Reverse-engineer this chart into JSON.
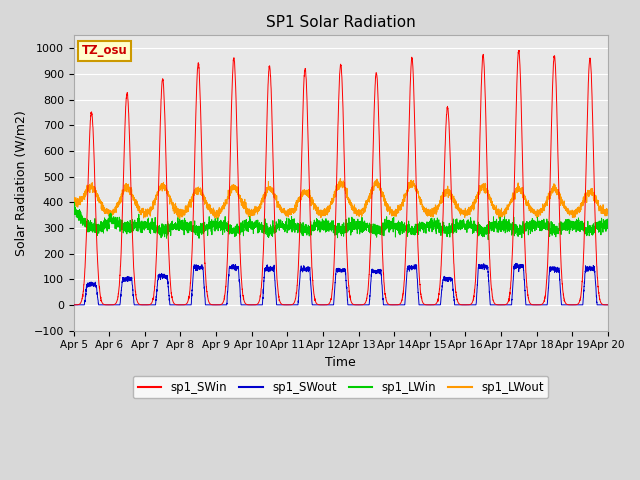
{
  "title": "SP1 Solar Radiation",
  "xlabel": "Time",
  "ylabel": "Solar Radiation (W/m2)",
  "ylim": [
    -100,
    1050
  ],
  "xlim": [
    0,
    15.0
  ],
  "xtick_labels": [
    "Apr 5",
    "Apr 6",
    "Apr 7",
    "Apr 8",
    "Apr 9",
    "Apr 10",
    "Apr 11",
    "Apr 12",
    "Apr 13",
    "Apr 14",
    "Apr 15",
    "Apr 16",
    "Apr 17",
    "Apr 18",
    "Apr 19",
    "Apr 20"
  ],
  "colors": {
    "sp1_SWin": "#ff0000",
    "sp1_SWout": "#0000cc",
    "sp1_LWin": "#00cc00",
    "sp1_LWout": "#ff9900"
  },
  "tz_label": "TZ_osu",
  "bg_color": "#e8e8e8",
  "grid_color": "#ffffff",
  "legend_labels": [
    "sp1_SWin",
    "sp1_SWout",
    "sp1_LWin",
    "sp1_LWout"
  ]
}
